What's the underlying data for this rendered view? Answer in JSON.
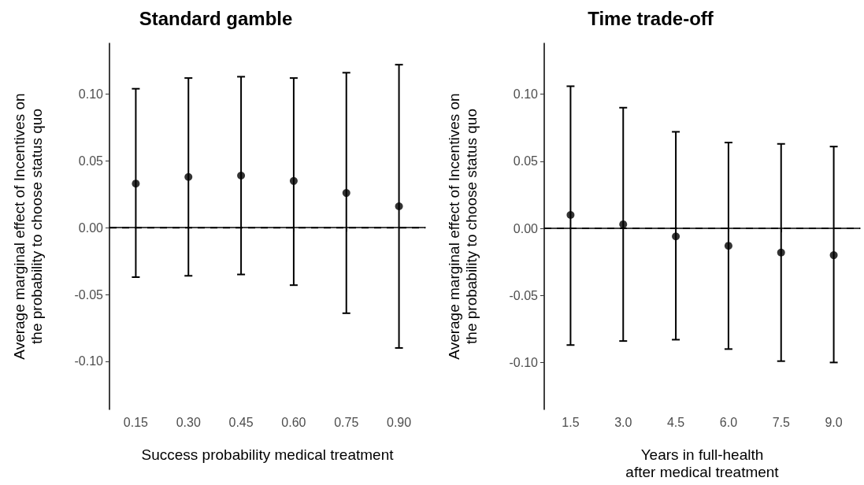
{
  "chart_data": [
    {
      "type": "scatter",
      "title": "Standard gamble",
      "xlabel": "Success probability medical treatment",
      "ylabel": "Average marginal effect of Incentives on\nthe probability to choose status quo",
      "categories": [
        "0.15",
        "0.30",
        "0.45",
        "0.60",
        "0.75",
        "0.90"
      ],
      "series": [
        {
          "color": "#000000",
          "values": [
            0.033,
            0.038,
            0.039,
            0.035,
            0.026,
            0.016
          ],
          "errors": [
            [
              -0.037,
              0.104
            ],
            [
              -0.036,
              0.112
            ],
            [
              -0.035,
              0.113
            ],
            [
              -0.043,
              0.112
            ],
            [
              -0.064,
              0.116
            ],
            [
              -0.09,
              0.122
            ]
          ]
        }
      ],
      "ylim": [
        -0.136,
        0.138
      ],
      "yticks": [
        {
          "value": -0.1,
          "label": "-0.10"
        },
        {
          "value": -0.05,
          "label": "-0.05"
        },
        {
          "value": 0,
          "label": "0.00"
        },
        {
          "value": 0.05,
          "label": "0.05"
        },
        {
          "value": 0.1,
          "label": "0.10"
        }
      ],
      "ref_lines": [
        {
          "axis": "y",
          "value": 0,
          "color": "#000000",
          "line_style": "dashed"
        }
      ],
      "marker": "circle",
      "grid": false
    },
    {
      "type": "scatter",
      "title": "Time trade-off",
      "xlabel": "Years in full-health\nafter medical treatment",
      "ylabel": "Average marginal effect of Incentives on\nthe probability to choose status quo",
      "categories": [
        "1.5",
        "3.0",
        "4.5",
        "6.0",
        "7.5",
        "9.0"
      ],
      "series": [
        {
          "color": "#000000",
          "values": [
            0.01,
            0.003,
            -0.006,
            -0.013,
            -0.018,
            -0.02
          ],
          "errors": [
            [
              -0.087,
              0.106
            ],
            [
              -0.084,
              0.09
            ],
            [
              -0.083,
              0.072
            ],
            [
              -0.09,
              0.064
            ],
            [
              -0.099,
              0.063
            ],
            [
              -0.1,
              0.061
            ]
          ]
        }
      ],
      "ylim": [
        -0.135,
        0.138
      ],
      "yticks": [
        {
          "value": -0.1,
          "label": "-0.10"
        },
        {
          "value": -0.05,
          "label": "-0.05"
        },
        {
          "value": 0,
          "label": "0.00"
        },
        {
          "value": 0.05,
          "label": "0.05"
        },
        {
          "value": 0.1,
          "label": "0.10"
        }
      ],
      "ref_lines": [
        {
          "axis": "y",
          "value": 0,
          "color": "#000000",
          "line_style": "dashed"
        }
      ],
      "marker": "circle",
      "grid": false
    }
  ]
}
